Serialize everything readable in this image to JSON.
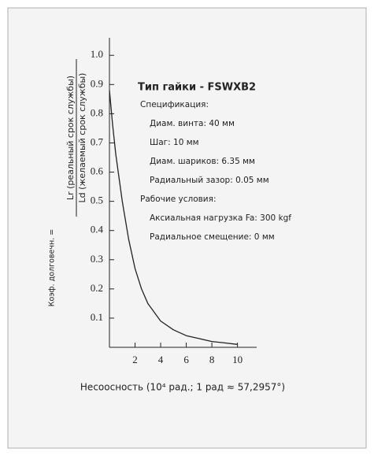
{
  "chart_data": {
    "type": "line",
    "ylabel_prefix": "Коэф. долговечн. =",
    "ylabel_numerator": "Lr (реальный срок службы)",
    "ylabel_denominator": "Ld (желаемый срок службы)",
    "xlabel": "Несоосность (10⁴ рад.; 1 рад ≈ 57,2957°)",
    "annotation_title": "Тип гайки - FSWXB2",
    "annotations": [
      "Спецификация:",
      "Диам. винта: 40 мм",
      "Шаг: 10 мм",
      "Диам. шариков: 6.35 мм",
      "Радиальный зазор: 0.05 мм",
      "Рабочие условия:",
      "Аксиальная нагрузка Fa: 300 kgf",
      "Радиальное смещение: 0 мм"
    ],
    "x": [
      0,
      0.25,
      0.5,
      0.75,
      1,
      1.5,
      2,
      2.5,
      3,
      4,
      5,
      6,
      7,
      8,
      9,
      10
    ],
    "series": [
      {
        "name": "Lr/Ld",
        "color": "#222222",
        "values": [
          0.88,
          0.76,
          0.66,
          0.58,
          0.5,
          0.37,
          0.27,
          0.2,
          0.15,
          0.09,
          0.06,
          0.04,
          0.03,
          0.02,
          0.015,
          0.01
        ]
      }
    ],
    "xlim": [
      0,
      11.5
    ],
    "ylim": [
      0,
      1.06
    ],
    "xticks": [
      2,
      4,
      6,
      8,
      10
    ],
    "yticks": [
      {
        "value": 0.1,
        "label": "0.1"
      },
      {
        "value": 0.2,
        "label": "0.2"
      },
      {
        "value": 0.3,
        "label": "0.3"
      },
      {
        "value": 0.4,
        "label": "0.4"
      },
      {
        "value": 0.5,
        "label": "0.5"
      },
      {
        "value": 0.6,
        "label": "0.6"
      },
      {
        "value": 0.7,
        "label": "0.7"
      },
      {
        "value": 0.8,
        "label": "0.8"
      },
      {
        "value": 0.9,
        "label": "0.9"
      },
      {
        "value": 1.0,
        "label": "1.0"
      }
    ],
    "grid": false
  }
}
